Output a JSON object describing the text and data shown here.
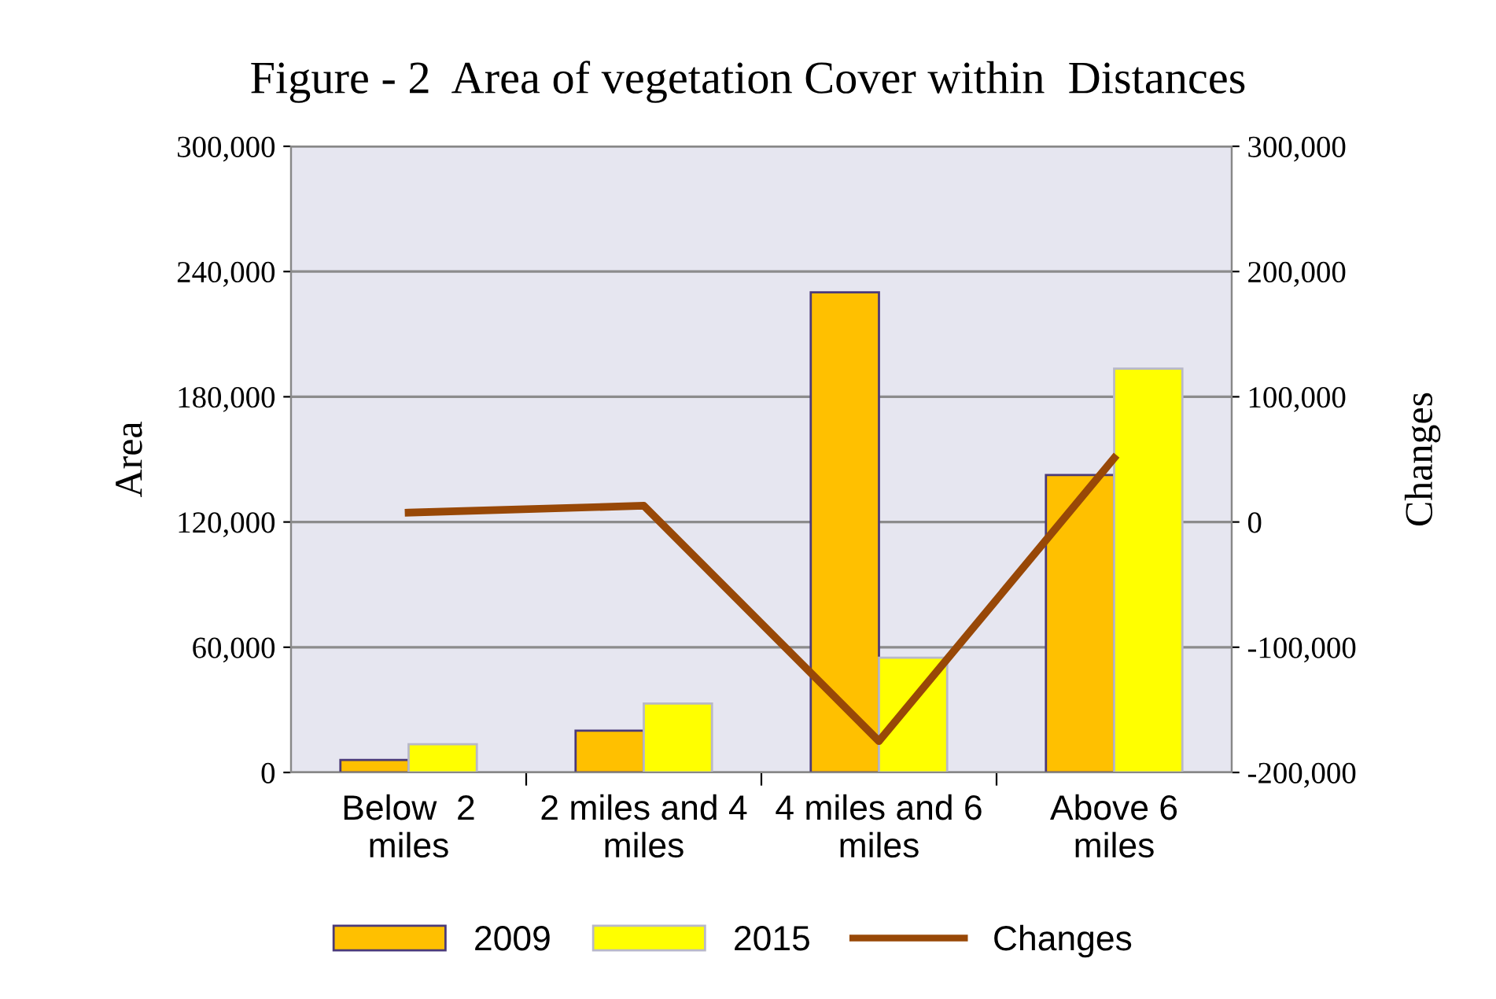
{
  "chart_data": {
    "type": "bar",
    "title": "Figure - 2  Area of vegetation Cover within  Distances",
    "ylabel": "Area",
    "y2label": "Changes",
    "categories": [
      "Below  2\nmiles",
      "2 miles and 4\nmiles",
      "4 miles and 6\nmiles",
      "Above 6\nmiles"
    ],
    "series": [
      {
        "name": "2009",
        "color": "#ffc000",
        "values": [
          6000,
          20000,
          230000,
          142500
        ]
      },
      {
        "name": "2015",
        "color": "#ffff00",
        "values": [
          13500,
          33000,
          55000,
          193500
        ]
      },
      {
        "name": "Changes",
        "color": "#984807",
        "type": "line",
        "axis": "y2",
        "values": [
          7500,
          13000,
          -175000,
          51000
        ]
      }
    ],
    "ylim": [
      0,
      300000
    ],
    "yticks": [
      {
        "value": 0,
        "label": "0"
      },
      {
        "value": 60000,
        "label": "60,000"
      },
      {
        "value": 120000,
        "label": "120,000"
      },
      {
        "value": 180000,
        "label": "180,000"
      },
      {
        "value": 240000,
        "label": "240,000"
      },
      {
        "value": 300000,
        "label": "300,000"
      }
    ],
    "y2lim": [
      -200000,
      300000
    ],
    "y2ticks": [
      {
        "value": -200000,
        "label": "-200,000"
      },
      {
        "value": -100000,
        "label": "-100,000"
      },
      {
        "value": 0,
        "label": "0"
      },
      {
        "value": 100000,
        "label": "100,000"
      },
      {
        "value": 200000,
        "label": "200,000"
      },
      {
        "value": 300000,
        "label": "300,000"
      }
    ],
    "grid": "y",
    "legend": "bottom"
  }
}
